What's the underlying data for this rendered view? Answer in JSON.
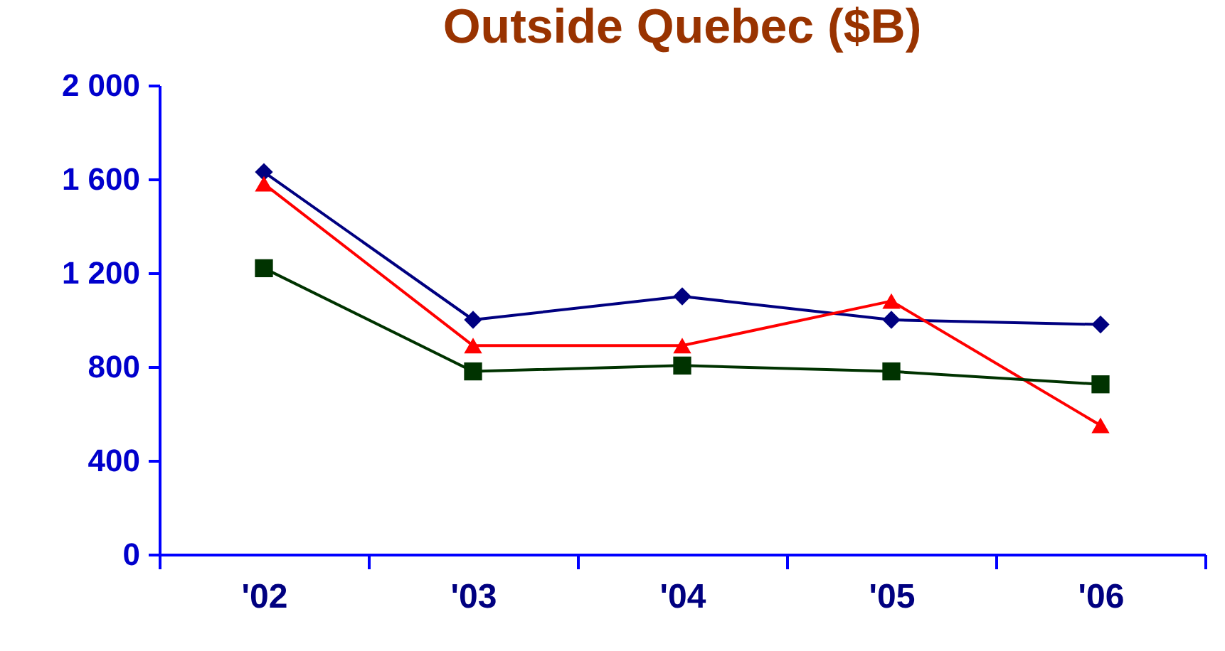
{
  "chart_data": {
    "type": "line",
    "title": "Outside Quebec ($B)",
    "categories": [
      "'02",
      "'03",
      "'04",
      "'05",
      "'06"
    ],
    "series": [
      {
        "color": "#000080",
        "marker": "diamond",
        "values": [
          1630,
          1000,
          1100,
          1000,
          980
        ]
      },
      {
        "color": "#ff0000",
        "marker": "triangle",
        "values": [
          1580,
          890,
          890,
          1080,
          550
        ]
      },
      {
        "color": "#003300",
        "marker": "square",
        "values": [
          1220,
          780,
          805,
          780,
          725
        ]
      }
    ],
    "ylim": [
      0,
      2000
    ],
    "yticks": [
      {
        "value": 0,
        "label": "0"
      },
      {
        "value": 400,
        "label": "400"
      },
      {
        "value": 800,
        "label": "800"
      },
      {
        "value": 1200,
        "label": "1 200"
      },
      {
        "value": 1600,
        "label": "1 600"
      },
      {
        "value": 2000,
        "label": "2 000"
      }
    ],
    "grid": false,
    "legend": false
  }
}
